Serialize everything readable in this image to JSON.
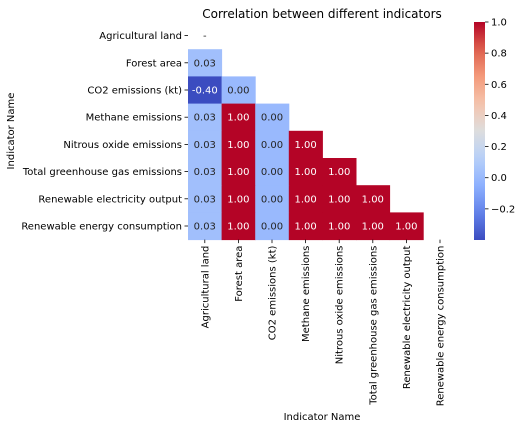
{
  "chart_data": {
    "type": "heatmap",
    "title": "Correlation between different indicators",
    "xlabel": "Indicator Name",
    "ylabel": "Indicator Name",
    "rows": [
      "Agricultural land",
      "Forest area",
      "CO2 emissions (kt)",
      "Methane emissions",
      "Nitrous oxide emissions",
      "Total greenhouse gas emissions",
      "Renewable electricity output",
      "Renewable energy consumption"
    ],
    "columns": [
      "Agricultural land",
      "Forest area",
      "CO2 emissions (kt)",
      "Methane emissions",
      "Nitrous oxide emissions",
      "Total greenhouse gas emissions",
      "Renewable electricity output",
      "Renewable energy consumption"
    ],
    "values": [
      [
        null,
        null,
        null,
        null,
        null,
        null,
        null,
        null
      ],
      [
        0.03,
        null,
        null,
        null,
        null,
        null,
        null,
        null
      ],
      [
        -0.4,
        0.0,
        null,
        null,
        null,
        null,
        null,
        null
      ],
      [
        0.03,
        1.0,
        0.0,
        null,
        null,
        null,
        null,
        null
      ],
      [
        0.03,
        1.0,
        0.0,
        1.0,
        null,
        null,
        null,
        null
      ],
      [
        0.03,
        1.0,
        0.0,
        1.0,
        1.0,
        null,
        null,
        null
      ],
      [
        0.03,
        1.0,
        0.0,
        1.0,
        1.0,
        1.0,
        null,
        null
      ],
      [
        0.03,
        1.0,
        0.0,
        1.0,
        1.0,
        1.0,
        1.0,
        null
      ]
    ],
    "cell_labels": [
      [
        "-",
        "",
        "",
        "",
        "",
        "",
        "",
        ""
      ],
      [
        "0.03",
        "",
        "",
        "",
        "",
        "",
        "",
        ""
      ],
      [
        "-0.40",
        "0.00",
        "",
        "",
        "",
        "",
        "",
        ""
      ],
      [
        "0.03",
        "1.00",
        "0.00",
        "",
        "",
        "",
        "",
        ""
      ],
      [
        "0.03",
        "1.00",
        "0.00",
        "1.00",
        "",
        "",
        "",
        ""
      ],
      [
        "0.03",
        "1.00",
        "0.00",
        "1.00",
        "1.00",
        "",
        "",
        ""
      ],
      [
        "0.03",
        "1.00",
        "0.00",
        "1.00",
        "1.00",
        "1.00",
        "",
        ""
      ],
      [
        "0.03",
        "1.00",
        "0.00",
        "1.00",
        "1.00",
        "1.00",
        "1.00",
        ""
      ]
    ],
    "colormap": "coolwarm",
    "color_range": [
      -0.4,
      1.0
    ],
    "colorbar": {
      "ticks": [
        -0.2,
        0.0,
        0.2,
        0.4,
        0.6,
        0.8,
        1.0
      ],
      "tick_labels": [
        "−0.2",
        "0.0",
        "0.2",
        "0.4",
        "0.6",
        "0.8",
        "1.0"
      ]
    },
    "grid": false
  }
}
